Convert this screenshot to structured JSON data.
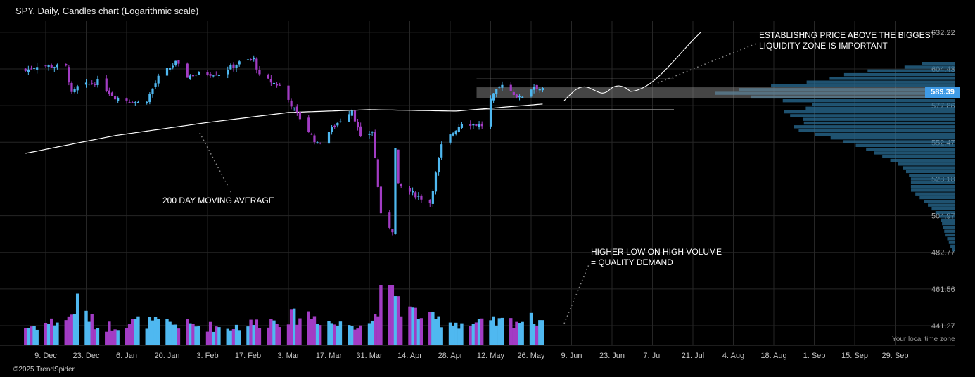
{
  "header": {
    "title": "SPY, Daily, Candles chart (Logarithmic scale)"
  },
  "footer": {
    "copyright": "©2025 TrendSpider",
    "timezone": "Your local time zone"
  },
  "annotations": {
    "ma": "200 DAY MOVING AVERAGE",
    "liquidity": "ESTABLISHNG PRICE ABOVE THE BIGGEST\nLIQUIDITY ZONE IS IMPORTANT",
    "volume": "HIGHER LOW ON HIGH VOLUME\n= QUALITY DEMAND"
  },
  "chart_data": {
    "type": "candlestick",
    "title": "SPY, Daily, Candles chart (Logarithmic scale)",
    "scale": "log",
    "current_price": "589.39",
    "y_ticks": [
      "632.22",
      "604.43",
      "577.86",
      "552.47",
      "528.18",
      "504.97",
      "482.77",
      "461.56",
      "441.27"
    ],
    "x_ticks": [
      "9. Dec",
      "23. Dec",
      "6. Jan",
      "20. Jan",
      "3. Feb",
      "17. Feb",
      "3. Mar",
      "17. Mar",
      "31. Mar",
      "14. Apr",
      "28. Apr",
      "12. May",
      "26. May",
      "9. Jun",
      "23. Jun",
      "7. Jul",
      "21. Jul",
      "4. Aug",
      "18. Aug",
      "1. Sep",
      "15. Sep",
      "29. Sep"
    ],
    "grid": true,
    "colors": {
      "up": "#4fb8f0",
      "down": "#a23cc4",
      "ma": "#ffffff",
      "profile": "#2a6d96",
      "tag": "#3f9be6"
    },
    "close_anchors": [
      [
        "2024-12-02",
        603
      ],
      [
        "2024-12-06",
        607
      ],
      [
        "2024-12-16",
        606
      ],
      [
        "2024-12-18",
        586
      ],
      [
        "2024-12-20",
        591
      ],
      [
        "2024-12-27",
        595
      ],
      [
        "2025-01-02",
        584
      ],
      [
        "2025-01-10",
        580
      ],
      [
        "2025-01-13",
        582
      ],
      [
        "2025-01-17",
        598
      ],
      [
        "2025-01-23",
        609
      ],
      [
        "2025-01-27",
        599
      ],
      [
        "2025-01-31",
        601
      ],
      [
        "2025-02-07",
        601
      ],
      [
        "2025-02-14",
        609
      ],
      [
        "2025-02-19",
        612
      ],
      [
        "2025-02-21",
        599
      ],
      [
        "2025-02-28",
        592
      ],
      [
        "2025-03-06",
        572
      ],
      [
        "2025-03-10",
        560
      ],
      [
        "2025-03-13",
        551
      ],
      [
        "2025-03-19",
        564
      ],
      [
        "2025-03-25",
        575
      ],
      [
        "2025-03-28",
        555
      ],
      [
        "2025-04-01",
        560
      ],
      [
        "2025-04-04",
        505
      ],
      [
        "2025-04-08",
        496
      ],
      [
        "2025-04-09",
        548
      ],
      [
        "2025-04-10",
        524
      ],
      [
        "2025-04-21",
        513
      ],
      [
        "2025-04-25",
        550
      ],
      [
        "2025-05-02",
        566
      ],
      [
        "2025-05-09",
        564
      ],
      [
        "2025-05-12",
        582
      ],
      [
        "2025-05-16",
        594
      ],
      [
        "2025-05-22",
        583
      ],
      [
        "2025-05-27",
        592
      ],
      [
        "2025-05-30",
        589
      ]
    ],
    "volume_anchors": [
      [
        "2024-12-02",
        0.3
      ],
      [
        "2024-12-17",
        0.45
      ],
      [
        "2024-12-20",
        0.72
      ],
      [
        "2024-12-27",
        0.3
      ],
      [
        "2025-01-10",
        0.4
      ],
      [
        "2025-02-10",
        0.3
      ],
      [
        "2025-03-10",
        0.52
      ],
      [
        "2025-03-20",
        0.35
      ],
      [
        "2025-04-01",
        0.4
      ],
      [
        "2025-04-04",
        0.85
      ],
      [
        "2025-04-07",
        1.0
      ],
      [
        "2025-04-09",
        0.95
      ],
      [
        "2025-04-11",
        0.65
      ],
      [
        "2025-04-21",
        0.45
      ],
      [
        "2025-05-05",
        0.35
      ],
      [
        "2025-05-30",
        0.45
      ]
    ],
    "ma_anchors": [
      [
        "2024-12-02",
        545
      ],
      [
        "2025-01-02",
        557
      ],
      [
        "2025-02-03",
        566
      ],
      [
        "2025-03-03",
        573
      ],
      [
        "2025-03-31",
        575
      ],
      [
        "2025-04-30",
        574
      ],
      [
        "2025-05-30",
        579
      ]
    ],
    "volume_profile_anchors": [
      [
        612,
        0.08
      ],
      [
        607,
        0.2
      ],
      [
        603,
        0.42
      ],
      [
        597,
        0.55
      ],
      [
        592,
        0.82
      ],
      [
        588,
        1.0
      ],
      [
        584,
        0.78
      ],
      [
        579,
        0.55
      ],
      [
        574,
        0.72
      ],
      [
        568,
        0.6
      ],
      [
        563,
        0.68
      ],
      [
        556,
        0.5
      ],
      [
        550,
        0.38
      ],
      [
        544,
        0.3
      ],
      [
        538,
        0.22
      ],
      [
        530,
        0.18
      ],
      [
        522,
        0.18
      ],
      [
        514,
        0.12
      ],
      [
        505,
        0.06
      ],
      [
        495,
        0.04
      ],
      [
        485,
        0.01
      ]
    ],
    "zone": {
      "low": 583,
      "high": 591
    },
    "zone_bounds": [
      597,
      575
    ]
  }
}
